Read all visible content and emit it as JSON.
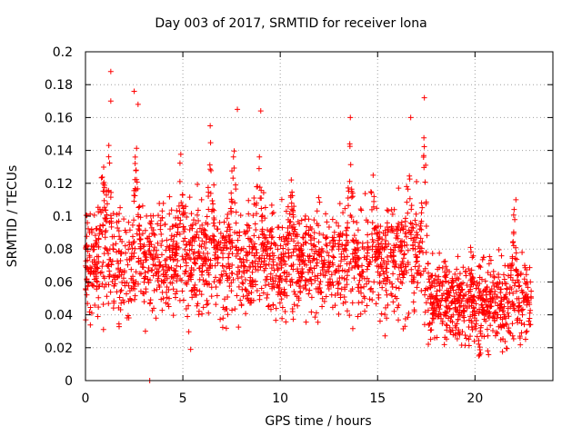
{
  "chart_data": {
    "type": "scatter",
    "title": "Day 003 of 2017, SRMTID for receiver lona",
    "xlabel": "GPS time / hours",
    "ylabel": "SRMTID / TECUs",
    "xlim": [
      0,
      24
    ],
    "ylim": [
      0,
      0.2
    ],
    "x_ticks": [
      "0",
      "5",
      "10",
      "15",
      "20"
    ],
    "y_ticks": [
      "0",
      "0.02",
      "0.04",
      "0.06",
      "0.08",
      "0.1",
      "0.12",
      "0.14",
      "0.16",
      "0.18",
      "0.2"
    ],
    "grid": true,
    "marker": "+",
    "color": "#ff0000",
    "notable_points": [
      {
        "x": 1.3,
        "y": 0.188
      },
      {
        "x": 1.3,
        "y": 0.17
      },
      {
        "x": 2.5,
        "y": 0.176
      },
      {
        "x": 2.7,
        "y": 0.168
      },
      {
        "x": 3.3,
        "y": 0.0
      },
      {
        "x": 7.8,
        "y": 0.165
      },
      {
        "x": 9.0,
        "y": 0.164
      },
      {
        "x": 13.6,
        "y": 0.16
      },
      {
        "x": 16.7,
        "y": 0.16
      },
      {
        "x": 17.4,
        "y": 0.172
      },
      {
        "x": 5.4,
        "y": 0.019
      },
      {
        "x": 20.2,
        "y": 0.015
      },
      {
        "x": 22.1,
        "y": 0.11
      }
    ],
    "series": [
      {
        "name": "SRMTID",
        "x_start": 0.0,
        "x_end": 22.9,
        "n_points": 2600,
        "segments": [
          {
            "t0": 0.0,
            "t1": 17.5,
            "mean": 0.072,
            "spread": 0.016
          },
          {
            "t0": 17.5,
            "t1": 22.9,
            "mean": 0.048,
            "spread": 0.013
          }
        ],
        "bursts": [
          {
            "t": 0.9,
            "peak": 0.15
          },
          {
            "t": 1.2,
            "peak": 0.155
          },
          {
            "t": 2.6,
            "peak": 0.15
          },
          {
            "t": 4.9,
            "peak": 0.15
          },
          {
            "t": 6.4,
            "peak": 0.158
          },
          {
            "t": 7.6,
            "peak": 0.155
          },
          {
            "t": 8.9,
            "peak": 0.16
          },
          {
            "t": 10.6,
            "peak": 0.13
          },
          {
            "t": 13.6,
            "peak": 0.155
          },
          {
            "t": 14.7,
            "peak": 0.148
          },
          {
            "t": 16.6,
            "peak": 0.158
          },
          {
            "t": 17.4,
            "peak": 0.165
          },
          {
            "t": 22.0,
            "peak": 0.108
          }
        ]
      }
    ]
  }
}
